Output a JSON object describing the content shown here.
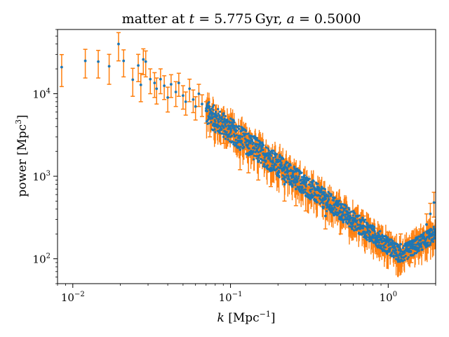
{
  "chart_data": {
    "type": "scatter",
    "title": {
      "prefix": "matter at ",
      "t_var": "t",
      "t_eq": " = 5.775",
      "t_unit": "Gyr",
      "sep": ", ",
      "a_var": "a",
      "a_eq": " = 0.5000"
    },
    "xlabel": {
      "var": "k",
      "unit_open": " [Mpc",
      "exp": "−1",
      "unit_close": "]"
    },
    "ylabel": {
      "text_open": "power [Mpc",
      "exp": "3",
      "text_close": "]"
    },
    "x_scale": "log",
    "y_scale": "log",
    "xlim": [
      0.008,
      2.0
    ],
    "ylim": [
      50,
      60000
    ],
    "grid": false,
    "x_ticks": [
      {
        "value": 0.01,
        "base": "10",
        "exp": "−2"
      },
      {
        "value": 0.1,
        "base": "10",
        "exp": "−1"
      },
      {
        "value": 1,
        "base": "10",
        "exp": "0"
      }
    ],
    "y_ticks": [
      {
        "value": 100,
        "base": "10",
        "exp": "2"
      },
      {
        "value": 1000,
        "base": "10",
        "exp": "3"
      },
      {
        "value": 10000,
        "base": "10",
        "exp": "4"
      }
    ],
    "series": [
      {
        "marker_color": "#1f77b4",
        "errorbar_color": "#ff7f0e",
        "points": [
          [
            0.0085,
            21000,
            8800
          ],
          [
            0.012,
            25000,
            9500
          ],
          [
            0.0145,
            24500,
            9000
          ],
          [
            0.017,
            21500,
            8500
          ],
          [
            0.0195,
            40000,
            15000
          ],
          [
            0.021,
            25000,
            9000
          ],
          [
            0.024,
            14800,
            5500
          ],
          [
            0.026,
            22000,
            8000
          ],
          [
            0.027,
            12800,
            4800
          ],
          [
            0.028,
            26000,
            9000
          ],
          [
            0.029,
            24500,
            8500
          ],
          [
            0.031,
            15000,
            5000
          ],
          [
            0.033,
            13500,
            4500
          ],
          [
            0.034,
            11500,
            4000
          ],
          [
            0.036,
            15000,
            5000
          ],
          [
            0.038,
            12500,
            4000
          ],
          [
            0.04,
            9000,
            3000
          ],
          [
            0.042,
            13000,
            4000
          ],
          [
            0.045,
            10500,
            3500
          ],
          [
            0.047,
            13500,
            4200
          ],
          [
            0.05,
            9500,
            3000
          ],
          [
            0.052,
            8000,
            2500
          ],
          [
            0.055,
            11500,
            3500
          ],
          [
            0.058,
            8500,
            2600
          ],
          [
            0.06,
            7000,
            2200
          ],
          [
            0.063,
            10000,
            3000
          ],
          [
            0.066,
            7500,
            2200
          ],
          [
            0.07,
            6200,
            1800
          ],
          [
            0.074,
            5000,
            2000
          ],
          [
            0.08,
            5600,
            1700
          ],
          [
            0.09,
            4000,
            1500
          ],
          [
            0.1,
            3800,
            1100
          ],
          [
            0.115,
            2100,
            900
          ],
          [
            0.13,
            1800,
            700
          ],
          [
            0.15,
            1500,
            600
          ],
          [
            0.18,
            1250,
            500
          ],
          [
            0.22,
            800,
            300
          ],
          [
            0.26,
            700,
            260
          ],
          [
            0.3,
            580,
            200
          ],
          [
            0.4,
            330,
            100
          ],
          [
            0.5,
            300,
            100
          ],
          [
            0.6,
            290,
            90
          ],
          [
            0.7,
            250,
            80
          ],
          [
            0.85,
            175,
            60
          ],
          [
            1.0,
            160,
            50
          ],
          [
            1.2,
            150,
            50
          ],
          [
            1.4,
            135,
            45
          ],
          [
            1.6,
            170,
            60
          ],
          [
            1.75,
            260,
            90
          ],
          [
            1.85,
            350,
            120
          ],
          [
            1.95,
            480,
            160
          ]
        ],
        "band": {
          "k_range": [
            0.07,
            2.0
          ],
          "k_pivot": 1.2,
          "amplitude_at_0_1": 3600,
          "slope": -1.4,
          "high_k_upturn": 0.35
        }
      }
    ]
  }
}
